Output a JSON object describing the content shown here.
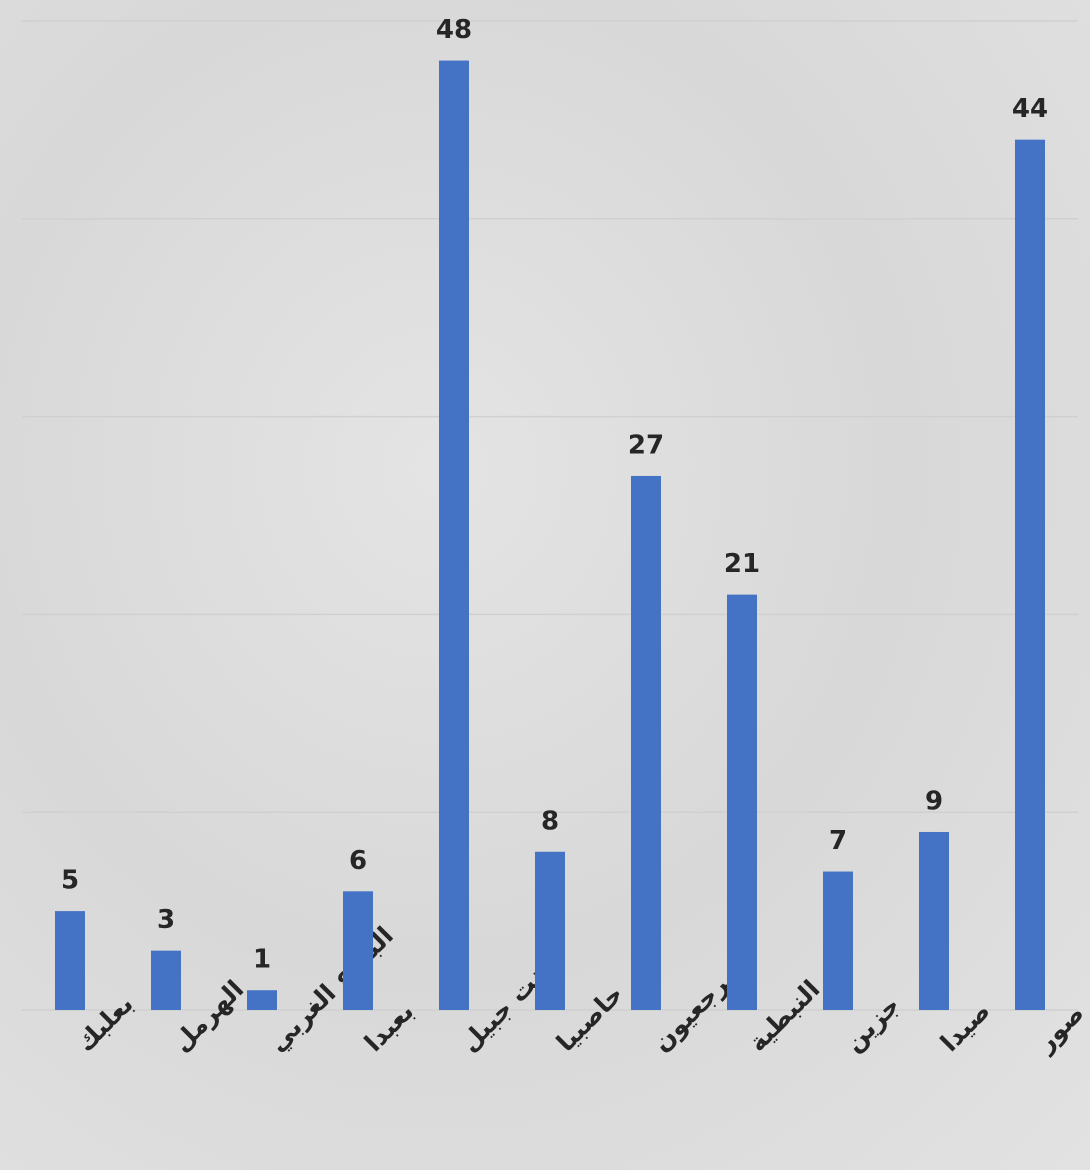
{
  "chart_data": {
    "type": "bar",
    "categories": [
      "بعلبك",
      "الهرمل",
      "البقاع الغربي",
      "بعبدا",
      "بنت جبيل",
      "حاصبيا",
      "مرجعيون",
      "النبطية",
      "جزين",
      "صيدا",
      "صور"
    ],
    "values": [
      5,
      3,
      1,
      6,
      48,
      8,
      27,
      21,
      7,
      9,
      44
    ],
    "color": "#4472c4",
    "ylim": [
      0,
      50
    ],
    "yticks": [
      0,
      10,
      20,
      30,
      40,
      50
    ],
    "grid": true,
    "show_tick_labels": false,
    "data_labels": true
  }
}
